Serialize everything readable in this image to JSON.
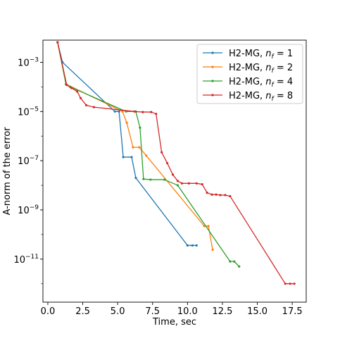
{
  "chart_data": {
    "type": "line",
    "title": "",
    "xlabel": "Time, sec",
    "ylabel": "A-norm of the error",
    "xlim": [
      -0.35,
      18.5
    ],
    "ylim": [
      -12.75,
      -2.1
    ],
    "yscale": "log",
    "grid": false,
    "legend_position": "upper right",
    "x_ticks": [
      {
        "value": 0,
        "label": "0.0"
      },
      {
        "value": 2.5,
        "label": "2.5"
      },
      {
        "value": 5,
        "label": "5.0"
      },
      {
        "value": 7.5,
        "label": "7.5"
      },
      {
        "value": 10,
        "label": "10.0"
      },
      {
        "value": 12.5,
        "label": "12.5"
      },
      {
        "value": 15,
        "label": "15.0"
      },
      {
        "value": 17.5,
        "label": "17.5"
      }
    ],
    "y_ticks": [
      {
        "exp": -3,
        "base": "10",
        "sup": "−3"
      },
      {
        "exp": -5,
        "base": "10",
        "sup": "−5"
      },
      {
        "exp": -7,
        "base": "10",
        "sup": "−7"
      },
      {
        "exp": -9,
        "base": "10",
        "sup": "−9"
      },
      {
        "exp": -11,
        "base": "10",
        "sup": "−11"
      }
    ],
    "series": [
      {
        "label_prefix": "H2-MG, ",
        "label_var": "n",
        "label_sub": "f",
        "label_suffix": " = 1",
        "color": "#1f77b4",
        "points": [
          [
            0.7,
            0.0065
          ],
          [
            1.05,
            0.001
          ],
          [
            4.8,
            1e-05
          ],
          [
            5.1,
            1e-05
          ],
          [
            5.4,
            1.4e-07
          ],
          [
            6.0,
            1.4e-07
          ],
          [
            6.3,
            2e-08
          ],
          [
            10.0,
            3.6e-11
          ],
          [
            10.35,
            3.6e-11
          ],
          [
            10.65,
            3.6e-11
          ]
        ]
      },
      {
        "label_prefix": "H2-MG, ",
        "label_var": "n",
        "label_sub": "f",
        "label_suffix": " = 2",
        "color": "#ff7f0e",
        "points": [
          [
            0.7,
            0.0065
          ],
          [
            1.3,
            0.00013
          ],
          [
            5.35,
            1e-05
          ],
          [
            5.65,
            3.5e-06
          ],
          [
            6.1,
            3.5e-07
          ],
          [
            6.55,
            3.5e-07
          ],
          [
            7.05,
            1.6e-07
          ],
          [
            11.2,
            2.2e-10
          ],
          [
            11.5,
            2.2e-10
          ],
          [
            11.8,
            2.4e-11
          ]
        ]
      },
      {
        "label_prefix": "H2-MG, ",
        "label_var": "n",
        "label_sub": "f",
        "label_suffix": " = 4",
        "color": "#2ca02c",
        "points": [
          [
            0.7,
            0.0065
          ],
          [
            1.3,
            0.00013
          ],
          [
            1.6,
            0.0001
          ],
          [
            5.6,
            1e-05
          ],
          [
            6.3,
            1e-05
          ],
          [
            6.6,
            2.2e-06
          ],
          [
            6.85,
            1.8e-08
          ],
          [
            7.35,
            1.7e-08
          ],
          [
            8.35,
            1.7e-08
          ],
          [
            9.3,
            1e-08
          ],
          [
            13.05,
            8e-12
          ],
          [
            13.35,
            8e-12
          ],
          [
            13.7,
            5e-12
          ]
        ]
      },
      {
        "label_prefix": "H2-MG, ",
        "label_var": "n",
        "label_sub": "f",
        "label_suffix": " = 8",
        "color": "#d62728",
        "points": [
          [
            0.7,
            0.0065
          ],
          [
            1.35,
            0.00012
          ],
          [
            1.7,
            9e-05
          ],
          [
            2.1,
            6.5e-05
          ],
          [
            2.35,
            3.5e-05
          ],
          [
            2.75,
            1.8e-05
          ],
          [
            3.3,
            1.5e-05
          ],
          [
            6.2,
            1e-05
          ],
          [
            6.8,
            9.5e-06
          ],
          [
            7.4,
            9.5e-06
          ],
          [
            7.75,
            8e-06
          ],
          [
            8.15,
            2.2e-07
          ],
          [
            8.55,
            8e-08
          ],
          [
            8.95,
            2.7e-08
          ],
          [
            9.3,
            1.5e-08
          ],
          [
            9.6,
            1.2e-08
          ],
          [
            10.1,
            1.2e-08
          ],
          [
            10.65,
            1.2e-08
          ],
          [
            11.05,
            1.1e-08
          ],
          [
            11.4,
            5e-09
          ],
          [
            11.75,
            4.2e-09
          ],
          [
            12.05,
            4.2e-09
          ],
          [
            12.35,
            4e-09
          ],
          [
            12.7,
            4e-09
          ],
          [
            13.05,
            3.6e-09
          ],
          [
            17.0,
            1e-12
          ],
          [
            17.35,
            1e-12
          ],
          [
            17.65,
            1e-12
          ]
        ]
      }
    ]
  }
}
